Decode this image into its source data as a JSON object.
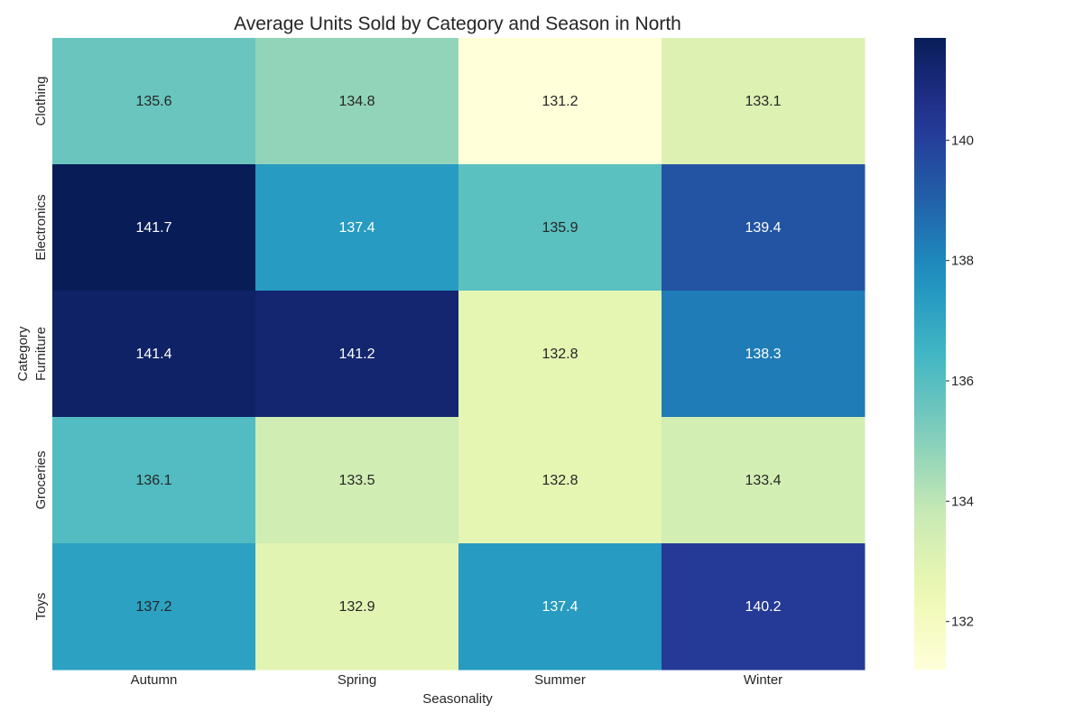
{
  "chart_data": {
    "type": "heatmap",
    "title": "Average Units Sold by Category and Season in North",
    "xlabel": "Seasonality",
    "ylabel": "Category",
    "x_categories": [
      "Autumn",
      "Spring",
      "Summer",
      "Winter"
    ],
    "y_categories": [
      "Clothing",
      "Electronics",
      "Furniture",
      "Groceries",
      "Toys"
    ],
    "values": [
      [
        135.6,
        134.8,
        131.2,
        133.1
      ],
      [
        141.7,
        137.4,
        135.9,
        139.4
      ],
      [
        141.4,
        141.2,
        132.8,
        138.3
      ],
      [
        136.1,
        133.5,
        132.8,
        133.4
      ],
      [
        137.2,
        132.9,
        137.4,
        140.2
      ]
    ],
    "value_range": [
      131.2,
      141.7
    ],
    "colorbar": {
      "ticks": [
        132,
        134,
        136,
        138,
        140
      ],
      "colormap": "YlGnBu"
    }
  }
}
